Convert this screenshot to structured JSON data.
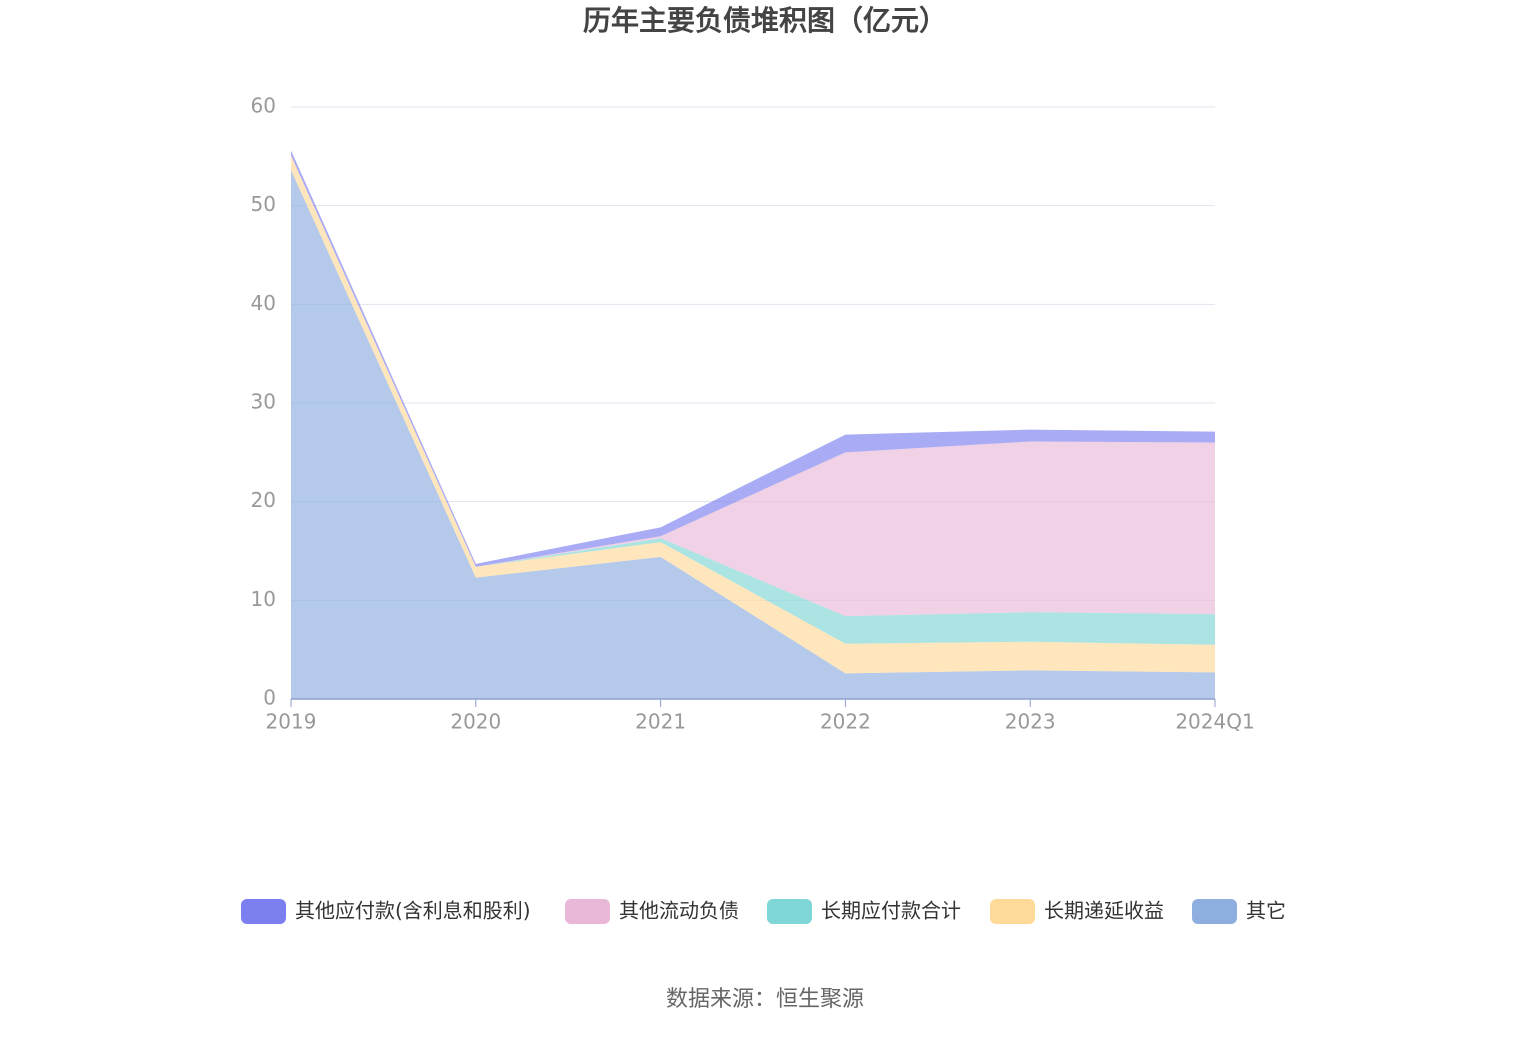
{
  "chart_data": {
    "type": "stacked-area",
    "title": "历年主要负债堆积图（亿元）",
    "categories": [
      "2019",
      "2020",
      "2021",
      "2022",
      "2023",
      "2024Q1"
    ],
    "series": [
      {
        "name": "其他应付款(含利息和股利)",
        "color": "#7b7ff0",
        "values": [
          0.5,
          0.3,
          0.9,
          1.8,
          1.2,
          1.1
        ]
      },
      {
        "name": "其他流动负债",
        "color": "#e9b8d9",
        "values": [
          0,
          0,
          0.2,
          16.6,
          17.3,
          17.4
        ]
      },
      {
        "name": "长期应付款合计",
        "color": "#7fd6d6",
        "values": [
          0,
          0,
          0.4,
          2.8,
          3.0,
          3.1
        ]
      },
      {
        "name": "长期递延收益",
        "color": "#ffd998",
        "values": [
          1.5,
          1.1,
          1.5,
          3.0,
          2.9,
          2.8
        ]
      },
      {
        "name": "其它",
        "color": "#8daede",
        "values": [
          53.6,
          12.3,
          14.4,
          2.6,
          2.9,
          2.7
        ]
      }
    ],
    "ylim": [
      0,
      60
    ],
    "yticks": [
      0,
      10,
      20,
      30,
      40,
      50,
      60
    ],
    "grid": true,
    "source": "数据来源：恒生聚源"
  }
}
